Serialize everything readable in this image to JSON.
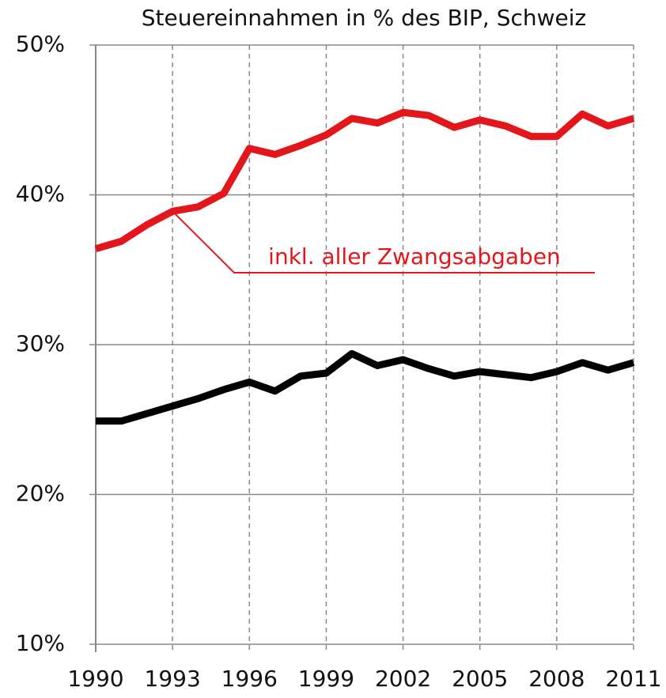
{
  "chart_data": {
    "type": "line",
    "title": "Steuereinnahmen in % des BIP, Schweiz",
    "x": [
      1990,
      1991,
      1992,
      1993,
      1994,
      1995,
      1996,
      1997,
      1998,
      1999,
      2000,
      2001,
      2002,
      2003,
      2004,
      2005,
      2006,
      2007,
      2008,
      2009,
      2010,
      2011
    ],
    "series": [
      {
        "name": "inkl. aller Zwangsabgaben",
        "color": "#e3161b",
        "values": [
          36.4,
          36.9,
          38.0,
          38.9,
          39.2,
          40.1,
          43.1,
          42.7,
          43.3,
          44.0,
          45.1,
          44.8,
          45.5,
          45.3,
          44.5,
          45.0,
          44.6,
          43.9,
          43.9,
          45.4,
          44.6,
          45.1
        ]
      },
      {
        "color": "#000000",
        "values": [
          24.9,
          24.9,
          25.4,
          25.9,
          26.4,
          27.0,
          27.5,
          26.9,
          27.9,
          28.1,
          29.4,
          28.6,
          29.0,
          28.4,
          27.9,
          28.2,
          28.0,
          27.8,
          28.2,
          28.8,
          28.3,
          28.8
        ]
      }
    ],
    "xlim": [
      1990,
      2011
    ],
    "xticks": [
      1990,
      1993,
      1996,
      1999,
      2002,
      2005,
      2008,
      2011
    ],
    "ylim": [
      10,
      50
    ],
    "yticks": [
      {
        "value": 10,
        "label": "10%"
      },
      {
        "value": 20,
        "label": "20%"
      },
      {
        "value": 30,
        "label": "30%"
      },
      {
        "value": 40,
        "label": "40%"
      },
      {
        "value": 50,
        "label": "50%"
      }
    ],
    "grid": true
  }
}
